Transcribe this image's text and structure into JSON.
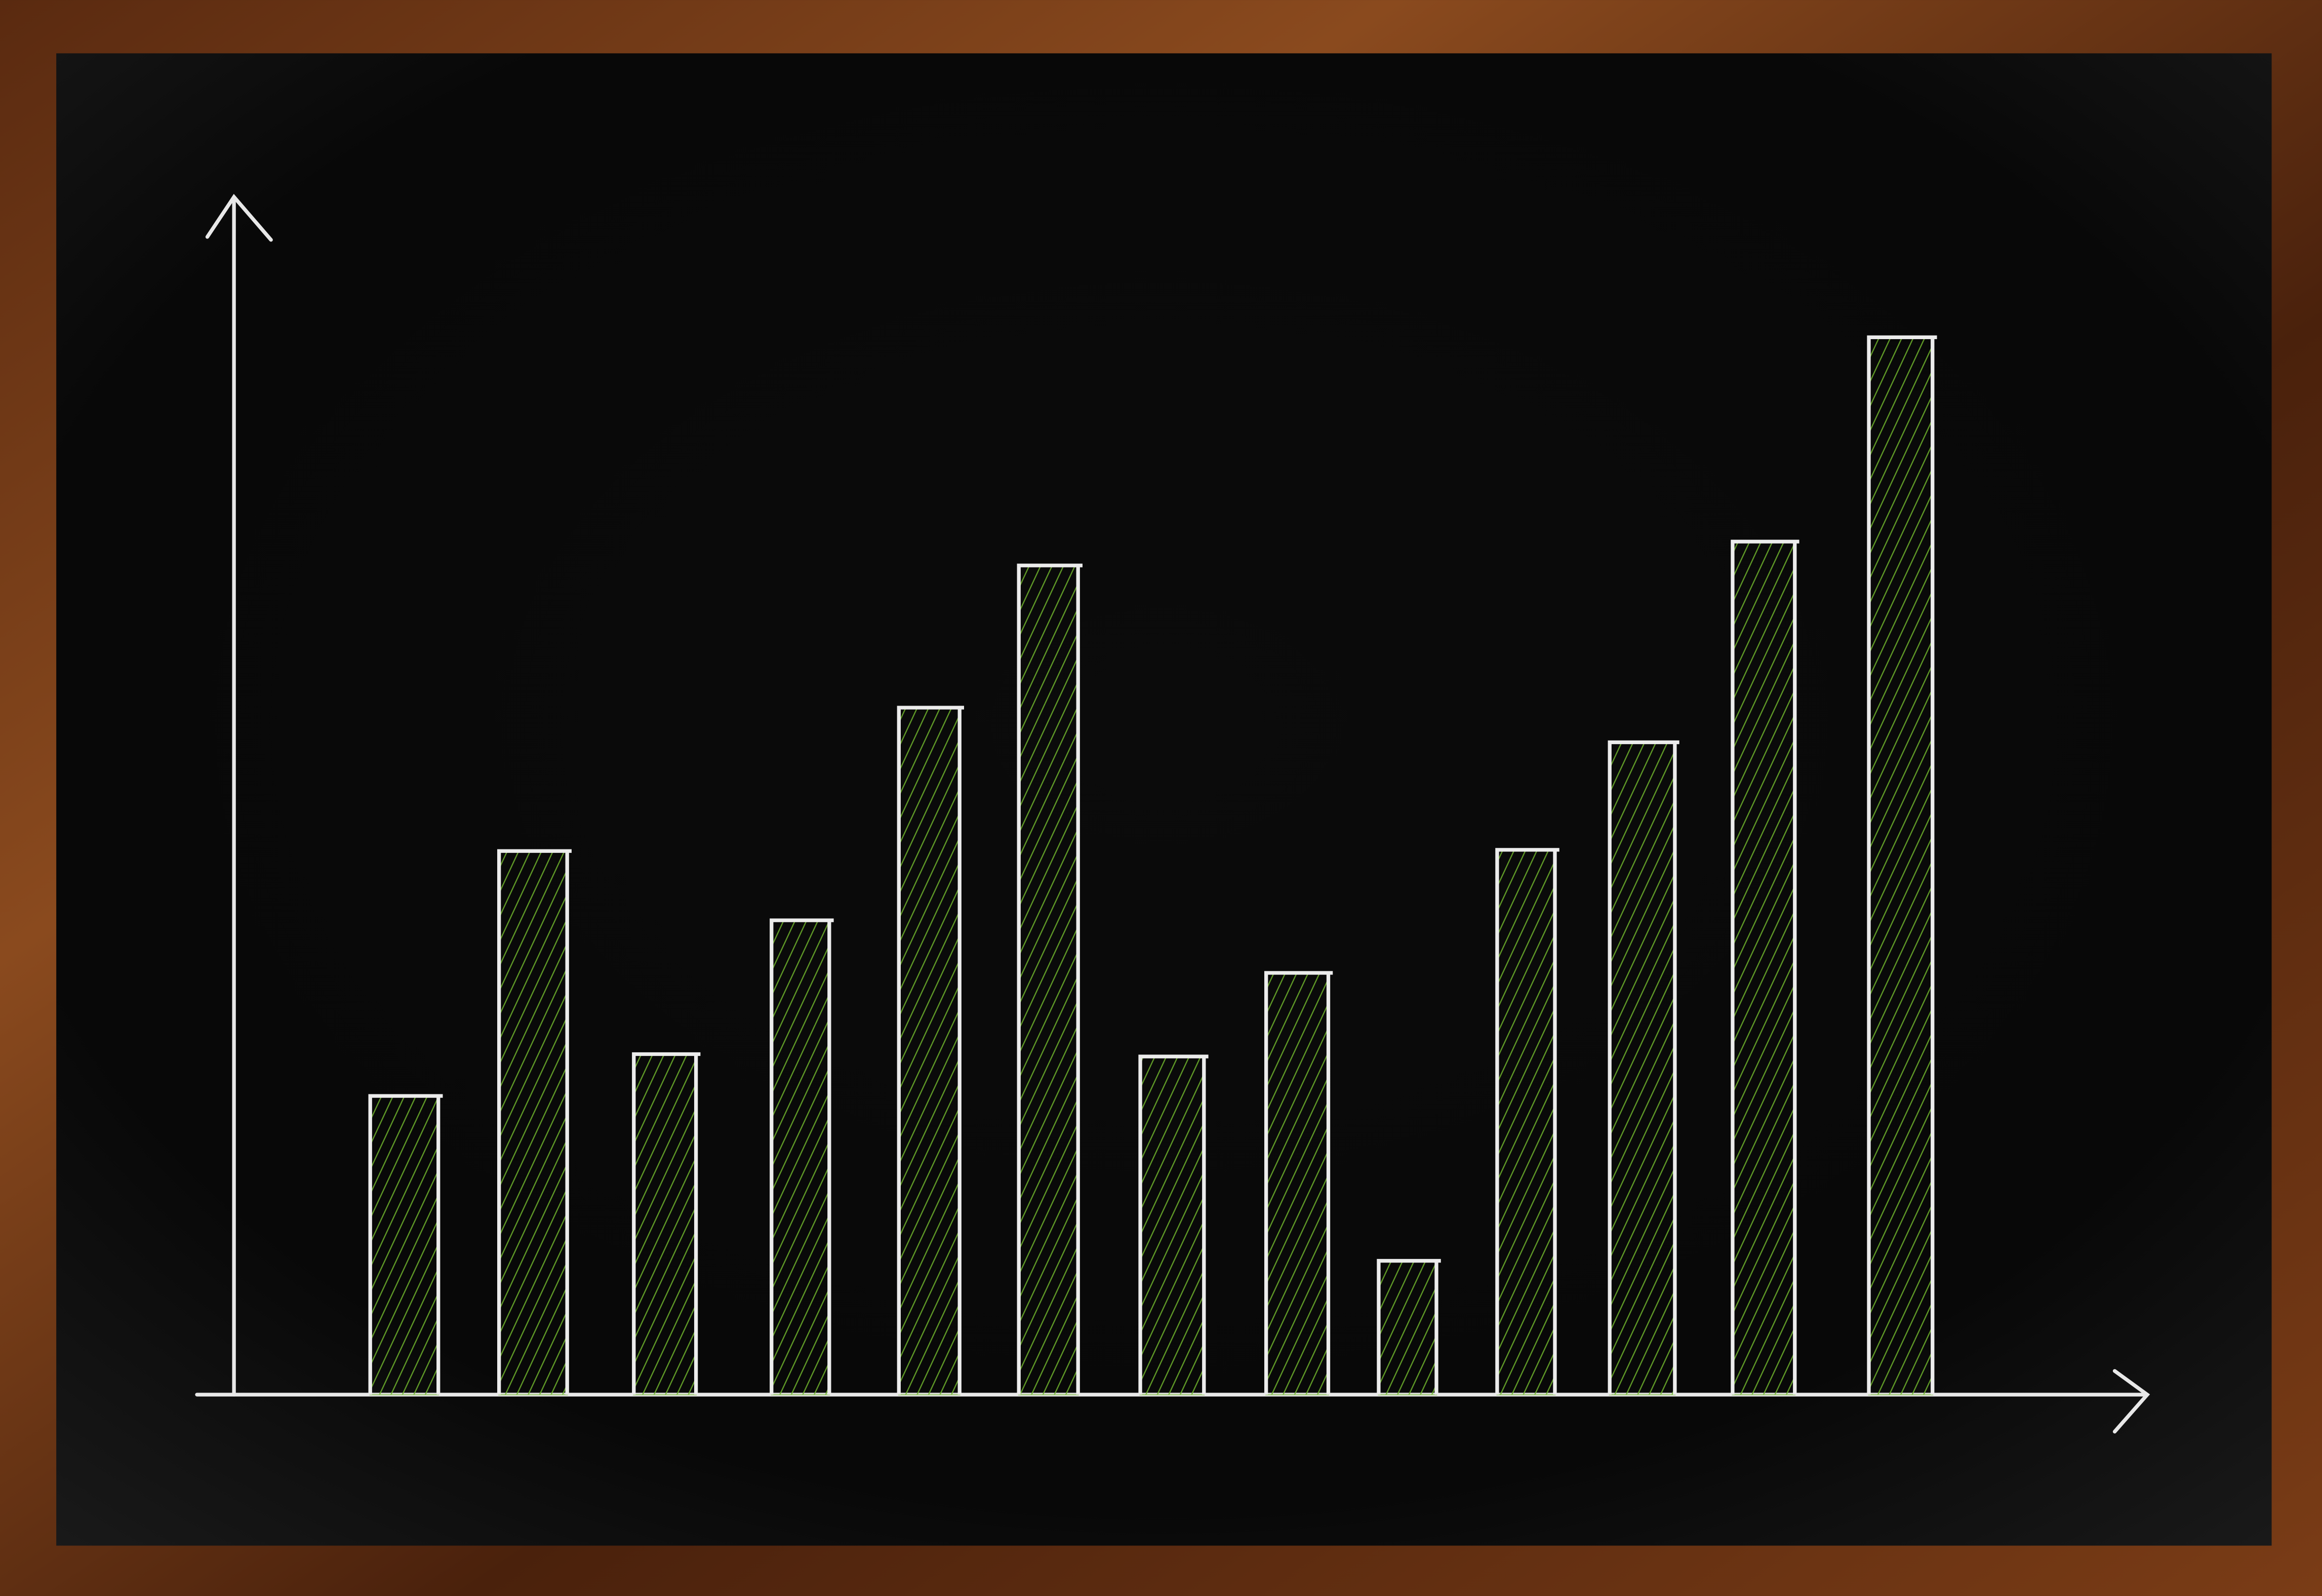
{
  "chart_data": {
    "type": "bar",
    "categories": [
      null,
      null,
      null,
      null,
      null,
      null,
      null,
      null,
      null,
      null,
      null,
      null,
      null
    ],
    "values": [
      25,
      45.5,
      28.5,
      39.7,
      57.5,
      69.4,
      28.3,
      35.3,
      11.2,
      45.6,
      54.6,
      71.4,
      88.5
    ],
    "color": "#6fb52c",
    "ylim": [
      0,
      100
    ]
  }
}
